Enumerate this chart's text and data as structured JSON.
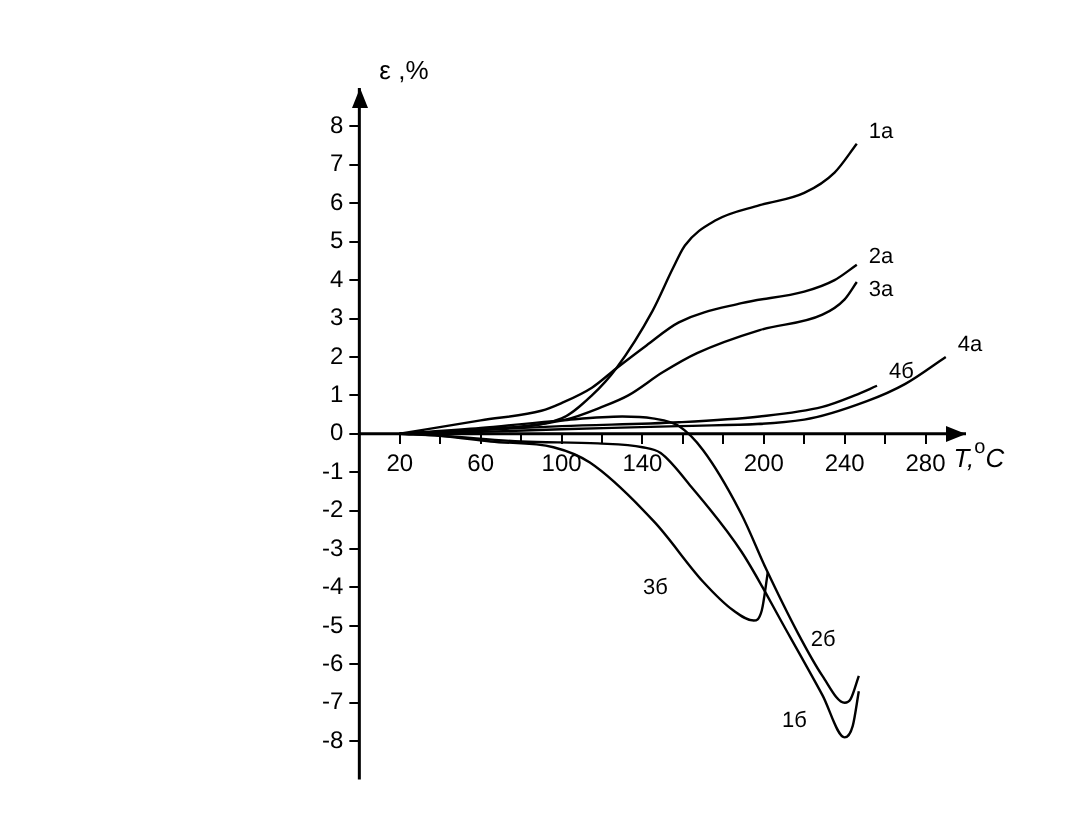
{
  "chart_data": {
    "type": "line",
    "xlabel": "T,$^{o}$C",
    "ylabel": "ε ,%",
    "xlim": [
      0,
      300
    ],
    "ylim": [
      -9,
      9
    ],
    "xticks": [
      20,
      {
        "value": 40,
        "label": null
      },
      60,
      {
        "value": 80,
        "label": null
      },
      100,
      {
        "value": 120,
        "label": null
      },
      140,
      {
        "value": 160,
        "label": null
      },
      {
        "value": 180,
        "label": null
      },
      200,
      {
        "value": 220,
        "label": null
      },
      240,
      {
        "value": 260,
        "label": null
      },
      280
    ],
    "yticks": [
      -8,
      -7,
      -6,
      -5,
      -4,
      -3,
      -2,
      -1,
      0,
      1,
      2,
      3,
      4,
      5,
      6,
      7,
      8
    ],
    "grid": false,
    "legend": false,
    "marker": "none",
    "line_style": "solid",
    "series": [
      {
        "name": "1а",
        "color": "#000000",
        "x": [
          20,
          60,
          100,
          115,
          127,
          145,
          155,
          161,
          176,
          198,
          220,
          235,
          246
        ],
        "values": [
          0,
          0.12,
          0.4,
          1.0,
          1.7,
          3.2,
          4.3,
          4.9,
          5.55,
          5.95,
          6.27,
          6.8,
          7.55
        ]
      },
      {
        "name": "2а",
        "color": "#000000",
        "x": [
          20,
          60,
          90,
          100,
          115,
          127,
          142,
          158,
          189,
          220,
          235,
          246
        ],
        "values": [
          0,
          0.35,
          0.6,
          0.8,
          1.2,
          1.7,
          2.3,
          2.9,
          3.4,
          3.7,
          4.0,
          4.4
        ]
      },
      {
        "name": "3а",
        "color": "#000000",
        "x": [
          20,
          60,
          102,
          120,
          133,
          150,
          167,
          198,
          229,
          240,
          246
        ],
        "values": [
          0,
          0.1,
          0.37,
          0.7,
          1.0,
          1.6,
          2.1,
          2.7,
          3.1,
          3.5,
          3.95
        ]
      },
      {
        "name": "4а",
        "color": "#000000",
        "x": [
          20,
          60,
          100,
          158,
          220,
          251,
          270,
          290
        ],
        "values": [
          0,
          0.05,
          0.12,
          0.2,
          0.37,
          0.85,
          1.3,
          2.0
        ]
      },
      {
        "name": "1б",
        "color": "#000000",
        "x": [
          20,
          40,
          80,
          118,
          140,
          149,
          164,
          189,
          211,
          229,
          240,
          244,
          247
        ],
        "values": [
          0,
          -0.05,
          -0.2,
          -0.25,
          -0.35,
          -0.5,
          -1.37,
          -3.07,
          -5.1,
          -6.8,
          -7.9,
          -7.6,
          -6.7
        ]
      },
      {
        "name": "2б",
        "color": "#000000",
        "x": [
          20,
          60,
          100,
          130,
          145,
          158,
          170,
          189,
          201,
          217,
          229,
          240,
          243,
          247
        ],
        "values": [
          0,
          0.15,
          0.35,
          0.45,
          0.4,
          0.2,
          -0.43,
          -2.1,
          -3.5,
          -5.2,
          -6.3,
          -7.0,
          -6.9,
          -6.3
        ]
      },
      {
        "name": "3б",
        "color": "#000000",
        "x": [
          20,
          40,
          65,
          96,
          114,
          146,
          170,
          185,
          195,
          199,
          202
        ],
        "values": [
          0,
          -0.05,
          -0.2,
          -0.35,
          -0.75,
          -2.3,
          -3.85,
          -4.6,
          -4.86,
          -4.6,
          -3.6
        ]
      },
      {
        "name": "4б",
        "color": "#000000",
        "x": [
          20,
          60,
          100,
          158,
          198,
          229,
          245,
          256
        ],
        "values": [
          0,
          0.1,
          0.2,
          0.3,
          0.45,
          0.7,
          1.0,
          1.25
        ]
      }
    ]
  }
}
